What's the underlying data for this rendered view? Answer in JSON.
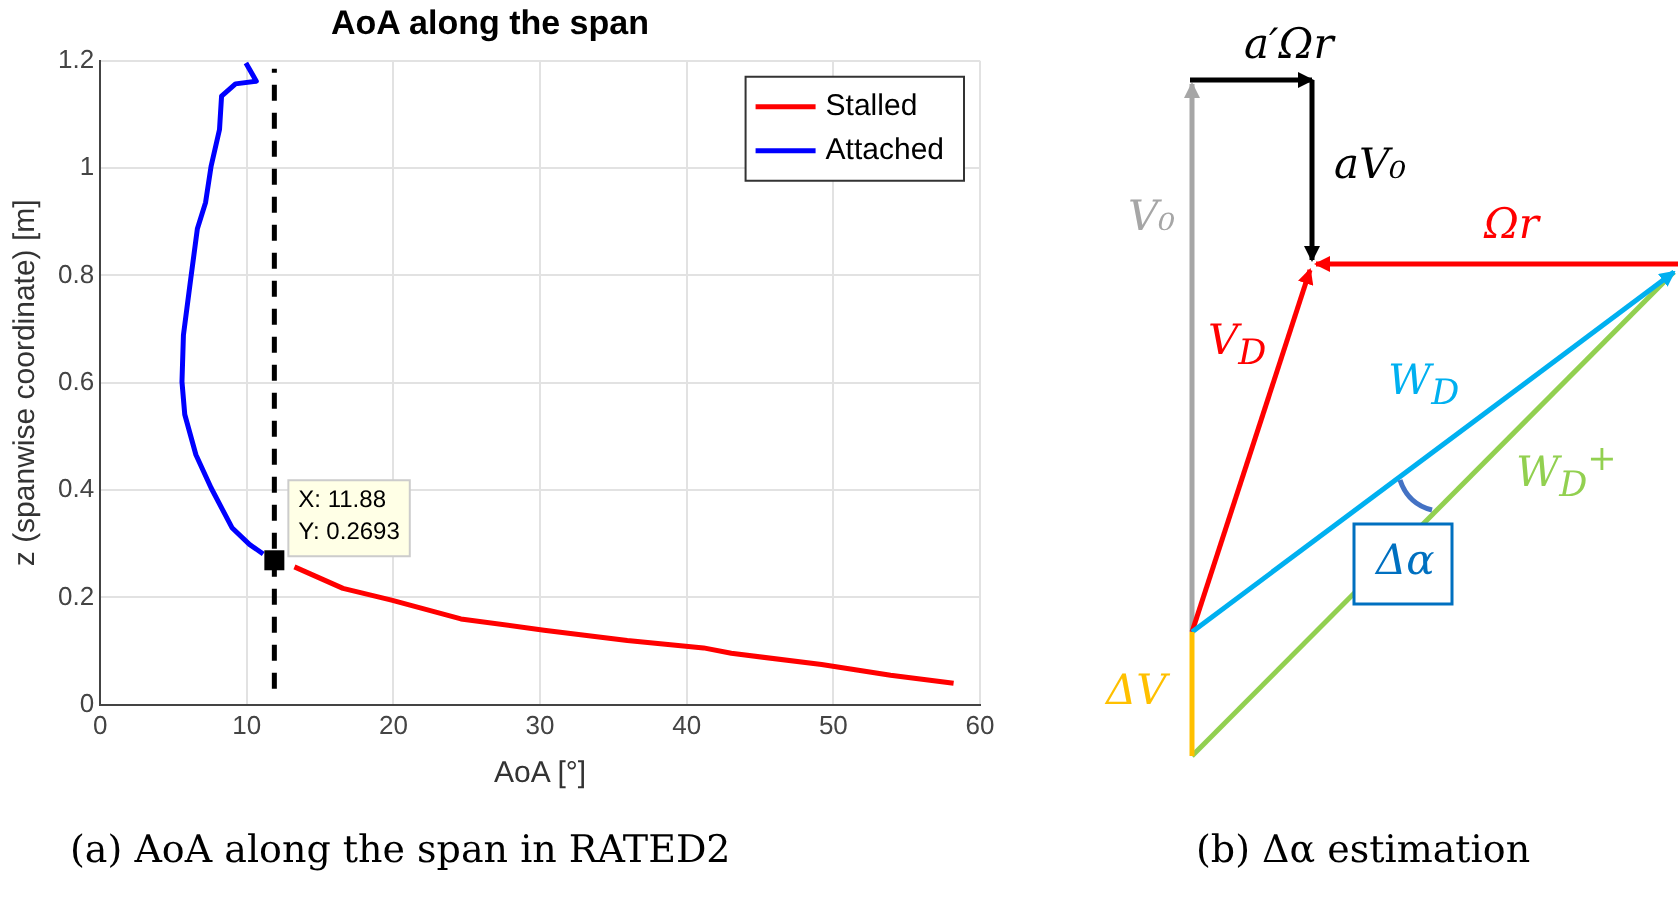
{
  "chart_data": {
    "type": "line",
    "title": "AoA along the span",
    "xlabel": "AoA [°]",
    "ylabel": "z (spanwise coordinate) [m]",
    "series": [
      {
        "name": "Stalled",
        "color": "#ff0000",
        "x": [
          13.25,
          16.56,
          19.87,
          24.6,
          30.27,
          35.95,
          41.15,
          43.04,
          49.2,
          53.9,
          58.2
        ],
        "values": [
          0.257,
          0.217,
          0.195,
          0.16,
          0.139,
          0.12,
          0.106,
          0.096,
          0.075,
          0.055,
          0.04
        ]
      },
      {
        "name": "Attached",
        "color": "#0000ff",
        "x": [
          9.94,
          10.65,
          9.23,
          8.28,
          8.14,
          7.57,
          7.19,
          6.63,
          6.15,
          5.68,
          5.58,
          5.77,
          6.53,
          7.57,
          8.99,
          10.18,
          11.12
        ],
        "values": [
          1.196,
          1.162,
          1.157,
          1.134,
          1.072,
          1.004,
          0.936,
          0.887,
          0.788,
          0.689,
          0.602,
          0.541,
          0.466,
          0.404,
          0.33,
          0.299,
          0.281
        ]
      }
    ],
    "xlim": [
      0,
      60
    ],
    "xticks": [
      0,
      10,
      20,
      30,
      40,
      50,
      60
    ],
    "ylim": [
      0,
      1.2
    ],
    "yticks": [
      0,
      0.2,
      0.4,
      0.6,
      0.8,
      1,
      1.2
    ],
    "grid": true,
    "legend": "top right",
    "ref_lines": [
      {
        "axis": "x",
        "value": 11.88,
        "color": "#000000",
        "line_style": "dashed"
      }
    ],
    "annotations": [
      {
        "text": "X: 11.88\nY: 0.2693",
        "x": 11.88,
        "y": 0.2693
      },
      "(a) AoA along the span in RATED2",
      "a′Ωr",
      "aV₀",
      "V₀",
      "Ωr",
      "V$_{D}$",
      "W$_{D}$",
      "W$_{D}$$^{+}$",
      "Δα",
      "ΔV",
      "(b) Δα estimation"
    ]
  }
}
